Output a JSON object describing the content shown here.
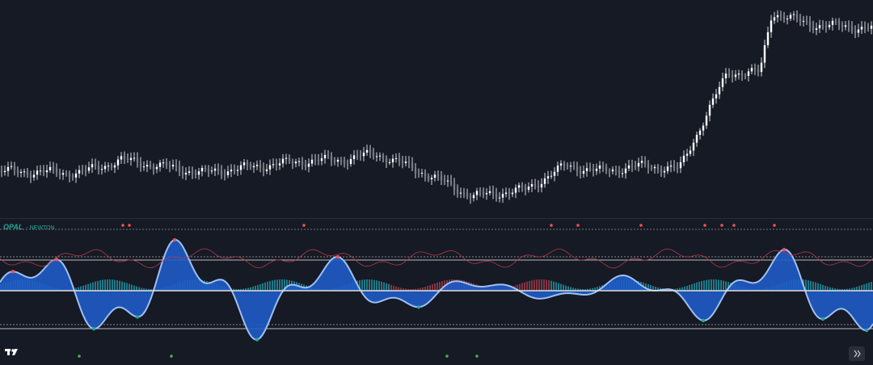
{
  "indicator": {
    "name": "OPAL",
    "subtitle": "- NEWTON"
  }
}
